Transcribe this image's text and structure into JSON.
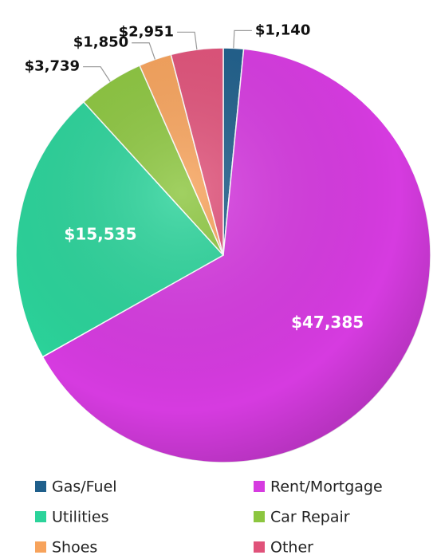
{
  "chart_data": {
    "type": "pie",
    "categories": [
      "Gas/Fuel",
      "Rent/Mortgage",
      "Utilities",
      "Car Repair",
      "Shoes",
      "Other"
    ],
    "values": [
      1140,
      47385,
      15535,
      3739,
      1850,
      2951
    ],
    "value_labels": [
      "$1,140",
      "$47,385",
      "$15,535",
      "$3,739",
      "$1,850",
      "$2,951"
    ],
    "colors": [
      "#1f5f8b",
      "#d63be0",
      "#2bd39a",
      "#8cc63f",
      "#f7a35c",
      "#e0527a"
    ],
    "legend": "bottom"
  }
}
